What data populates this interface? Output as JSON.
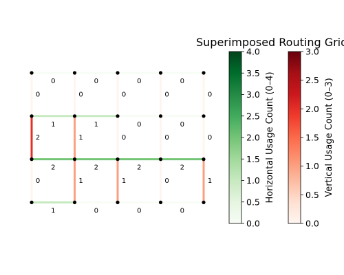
{
  "chart_data": {
    "type": "heatmap",
    "title": "Superimposed Routing Grid",
    "grid": {
      "cols": 5,
      "rows": 4
    },
    "horizontal_usage": {
      "rows": [
        [
          0,
          0,
          0,
          0
        ],
        [
          1,
          1,
          0,
          0
        ],
        [
          2,
          2,
          2,
          2
        ],
        [
          1,
          0,
          0,
          0
        ]
      ]
    },
    "vertical_usage": {
      "rows": [
        [
          0,
          0,
          0,
          0,
          0
        ],
        [
          2,
          1,
          0,
          0,
          0
        ],
        [
          0,
          1,
          1,
          0,
          1
        ]
      ]
    },
    "colorbars": [
      {
        "label": "Horizontal Usage Count (0–4)",
        "colormap": "Greens",
        "range": [
          0,
          4
        ],
        "ticks": [
          "0.0",
          "0.5",
          "1.0",
          "1.5",
          "2.0",
          "2.5",
          "3.0",
          "3.5",
          "4.0"
        ]
      },
      {
        "label": "Vertical Usage Count (0–3)",
        "colormap": "Reds",
        "range": [
          0,
          3
        ],
        "ticks": [
          "0.0",
          "0.5",
          "1.0",
          "1.5",
          "2.0",
          "2.5",
          "3.0"
        ]
      }
    ]
  }
}
